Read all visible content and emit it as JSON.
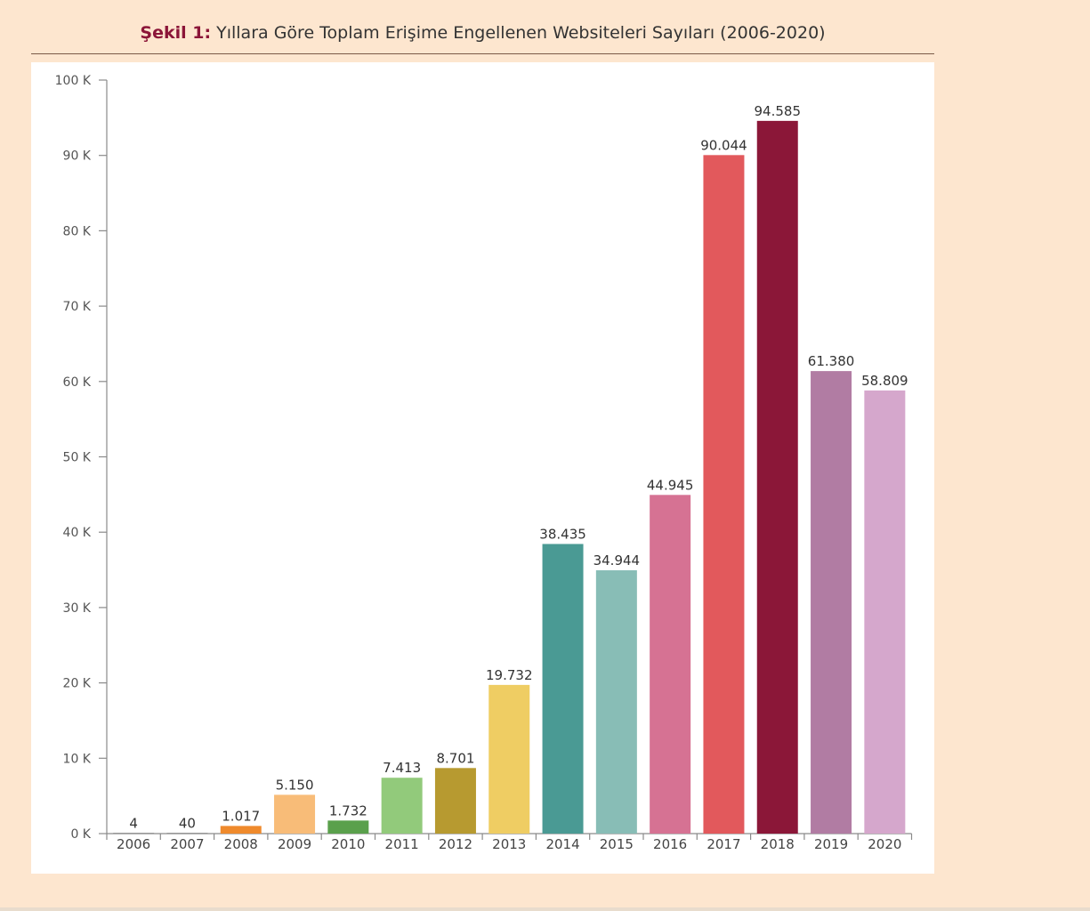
{
  "title": {
    "lead": "Şekil 1:",
    "rest": " Yıllara Göre Toplam Erişime Engellenen Websiteleri Sayıları (2006-2020)"
  },
  "chart_data": {
    "type": "bar",
    "title": "Şekil 1: Yıllara Göre Toplam Erişime Engellenen Websiteleri Sayıları (2006-2020)",
    "xlabel": "",
    "ylabel": "",
    "ylim": [
      0,
      100000
    ],
    "categories": [
      "2006",
      "2007",
      "2008",
      "2009",
      "2010",
      "2011",
      "2012",
      "2013",
      "2014",
      "2015",
      "2016",
      "2017",
      "2018",
      "2019",
      "2020"
    ],
    "values": [
      4,
      40,
      1017,
      5150,
      1732,
      7413,
      8701,
      19732,
      38435,
      34944,
      44945,
      90044,
      94585,
      61380,
      58809
    ],
    "value_labels": [
      "4",
      "40",
      "1.017",
      "5.150",
      "1.732",
      "7.413",
      "8.701",
      "19.732",
      "38.435",
      "34.944",
      "44.945",
      "90.044",
      "94.585",
      "61.380",
      "58.809"
    ],
    "y_ticks": [
      0,
      10000,
      20000,
      30000,
      40000,
      50000,
      60000,
      70000,
      80000,
      90000,
      100000
    ],
    "y_tick_labels": [
      "0 K",
      "10 K",
      "20 K",
      "30 K",
      "40 K",
      "50 K",
      "60 K",
      "70 K",
      "80 K",
      "90 K",
      "100 K"
    ],
    "colors": [
      "#6b6b6b",
      "#6b6b6b",
      "#ef8a2c",
      "#f8bc78",
      "#5aa04c",
      "#92ca7b",
      "#b79a30",
      "#efcd63",
      "#4a9a94",
      "#88bdb6",
      "#d67293",
      "#e2595c",
      "#8b1738",
      "#b17ca3",
      "#d5a7cc"
    ],
    "grid": false,
    "legend": "none"
  }
}
